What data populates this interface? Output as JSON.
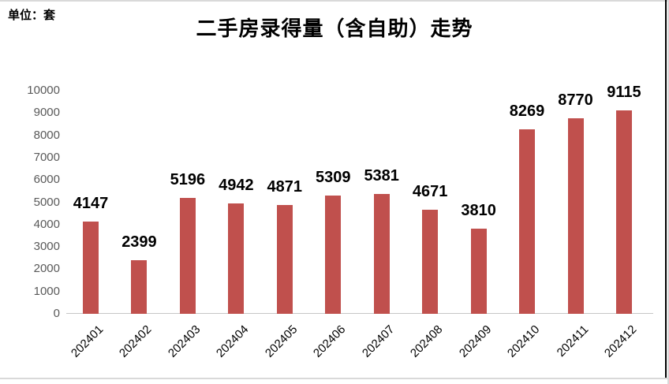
{
  "unit_label": "单位：套",
  "chart_data": {
    "type": "bar",
    "title": "二手房录得量（含自助）走势",
    "xlabel": "",
    "ylabel": "单位：套",
    "categories": [
      "202401",
      "202402",
      "202403",
      "202404",
      "202405",
      "202406",
      "202407",
      "202408",
      "202409",
      "202410",
      "202411",
      "202412"
    ],
    "values": [
      4147,
      2399,
      5196,
      4942,
      4871,
      5309,
      5381,
      4671,
      3810,
      8269,
      8770,
      9115
    ],
    "ylim": [
      0,
      10000
    ],
    "yticks": [
      0,
      1000,
      2000,
      3000,
      4000,
      5000,
      6000,
      7000,
      8000,
      9000,
      10000
    ],
    "grid": "off",
    "legend": "none",
    "data_labels": "outside-end",
    "bar_color": "#c0504d",
    "value_label_color": "#000000",
    "axis_tick_color": "#595959",
    "category_label_color": "#000000",
    "axis_line_color": "#c6c6c6"
  }
}
